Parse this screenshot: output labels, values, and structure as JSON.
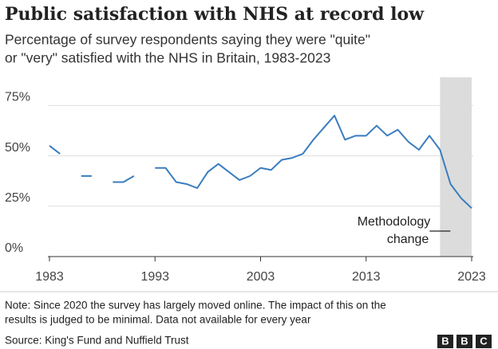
{
  "chart_data": {
    "type": "line",
    "title": "Public satisfaction with NHS at record low",
    "subtitle": [
      "Percentage of survey respondents saying they were \"quite\"",
      "or \"very\" satisfied with the NHS in Britain, 1983-2023"
    ],
    "x": [
      1983,
      1984,
      1985,
      1986,
      1987,
      1988,
      1989,
      1990,
      1991,
      1992,
      1993,
      1994,
      1995,
      1996,
      1997,
      1998,
      1999,
      2000,
      2001,
      2002,
      2003,
      2004,
      2005,
      2006,
      2007,
      2008,
      2009,
      2010,
      2011,
      2012,
      2013,
      2014,
      2015,
      2016,
      2017,
      2018,
      2019,
      2020,
      2021,
      2022,
      2023
    ],
    "series": [
      {
        "name": "Satisfied",
        "color": "#3a7dbf",
        "values": [
          55,
          51,
          null,
          40,
          40,
          null,
          37,
          37,
          40,
          null,
          44,
          44,
          37,
          36,
          34,
          42,
          46,
          42,
          38,
          40,
          44,
          43,
          48,
          49,
          51,
          58,
          64,
          70,
          58,
          60,
          60,
          65,
          60,
          63,
          57,
          53,
          60,
          53,
          36,
          29,
          24
        ]
      }
    ],
    "xlim": [
      1983,
      2023
    ],
    "xticks": [
      1983,
      1993,
      2003,
      2013,
      2023
    ],
    "ylim": [
      0,
      89
    ],
    "yticks": [
      {
        "value": 0,
        "label": "0%"
      },
      {
        "value": 25,
        "label": "25%"
      },
      {
        "value": 50,
        "label": "50%"
      },
      {
        "value": 75,
        "label": "75%"
      }
    ],
    "grid": true,
    "highlight_x": [
      2020,
      2023
    ],
    "annotation": [
      "Methodology",
      "change"
    ],
    "note": [
      "Note: Since 2020 the survey has largely moved online. The impact of this on the",
      "results is judged to be minimal. Data not available for every year"
    ],
    "source": "Source: King's Fund and Nuffield Trust",
    "logo": [
      "B",
      "B",
      "C"
    ]
  }
}
